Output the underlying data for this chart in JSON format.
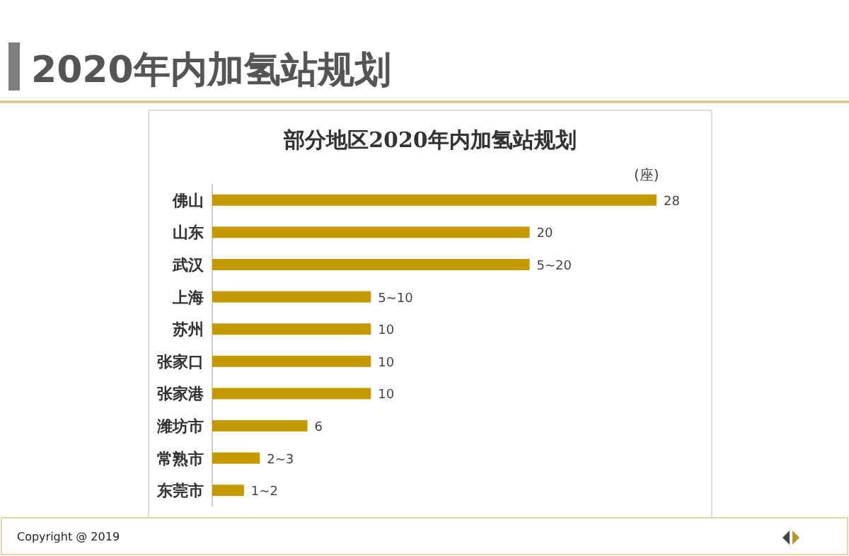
{
  "chart_data": {
    "type": "bar",
    "orientation": "horizontal",
    "title": "2020年内加氢站规划",
    "subtitle": "部分地区2020年内加氢站规划",
    "categories": [
      "佛山",
      "山东",
      "武汉",
      "上海",
      "苏州",
      "张家口",
      "张家港",
      "潍坊市",
      "常熟市",
      "东莞市"
    ],
    "values": [
      28,
      20,
      20,
      10,
      10,
      10,
      10,
      6,
      3,
      2
    ],
    "value_labels": [
      "28",
      "20",
      "5~20",
      "5~10",
      "10",
      "10",
      "10",
      "6",
      "2~3",
      "1~2"
    ],
    "color": "#c49a00",
    "annotations": [
      "(座)",
      "Copyright @ 2019"
    ]
  }
}
